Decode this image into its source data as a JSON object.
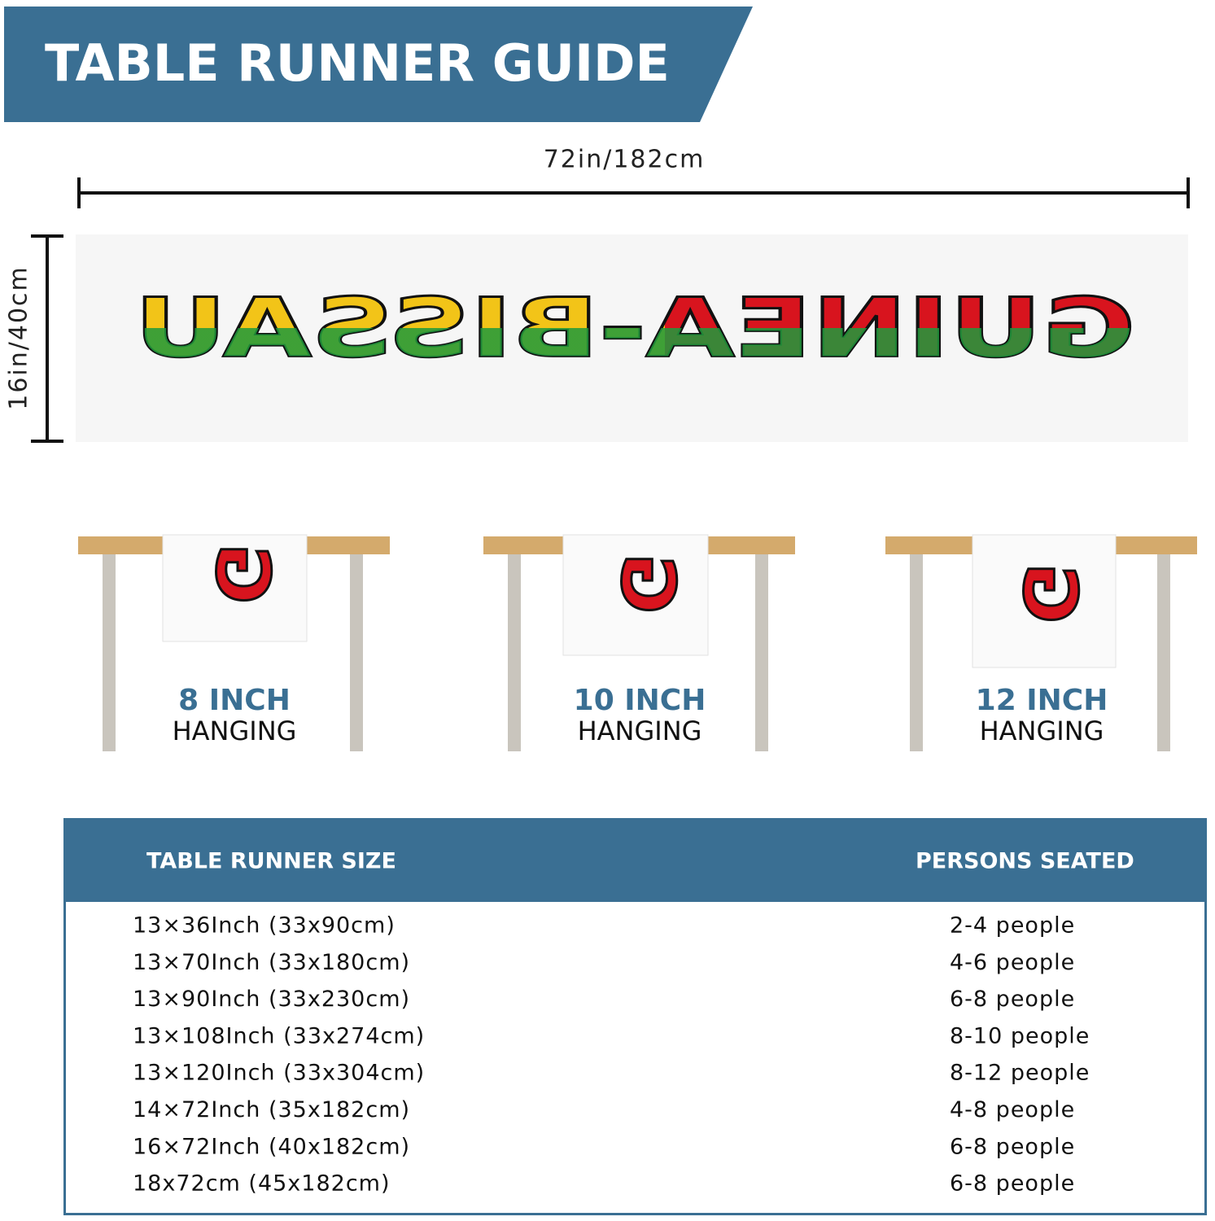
{
  "header": {
    "title": "TABLE RUNNER GUIDE"
  },
  "runner": {
    "width_label": "72in/182cm",
    "height_label": "16in/40cm",
    "print_text": "GUINEA-BISSAU",
    "hanging_letter": "G"
  },
  "hanging": [
    {
      "size": "8 INCH",
      "label": "HANGING"
    },
    {
      "size": "10 INCH",
      "label": "HANGING"
    },
    {
      "size": "12 INCH",
      "label": "HANGING"
    }
  ],
  "table": {
    "columns": [
      "TABLE RUNNER SIZE",
      "PERSONS SEATED"
    ],
    "rows": [
      [
        "13×36Inch (33x90cm)",
        "2-4 people"
      ],
      [
        "13×70Inch  (33x180cm)",
        "4-6 people"
      ],
      [
        "13×90Inch  (33x230cm)",
        "6-8 people"
      ],
      [
        "13×108Inch  (33x274cm)",
        "8-10 people"
      ],
      [
        "13×120Inch  (33x304cm)",
        "8-12 people"
      ],
      [
        "14×72Inch (35x182cm)",
        "4-8 people"
      ],
      [
        "16×72Inch (40x182cm)",
        "6-8 people"
      ],
      [
        "18x72cm (45x182cm)",
        "6-8 people"
      ]
    ]
  }
}
